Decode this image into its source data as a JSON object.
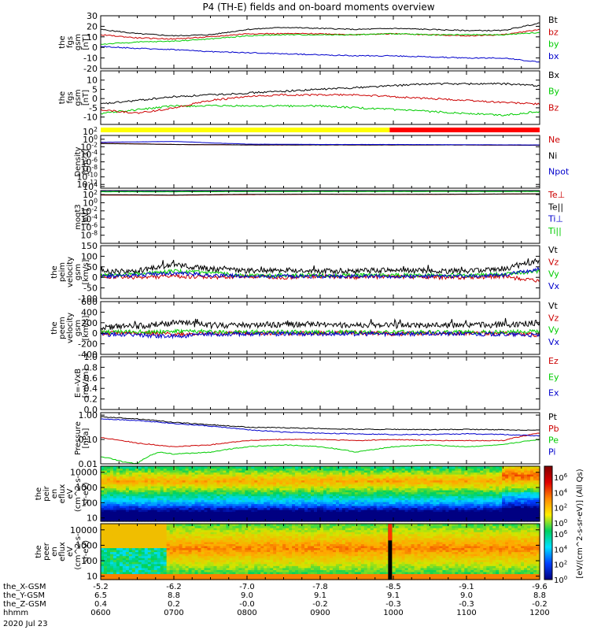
{
  "title": "P4 (TH-E) fields and on-board moments overview",
  "footer": {
    "rows": [
      {
        "label": "the_X-GSM",
        "values": [
          "-5.2",
          "-6.2",
          "-7.0",
          "-7.8",
          "-8.5",
          "-9.1",
          "-9.6"
        ]
      },
      {
        "label": "the_Y-GSM",
        "values": [
          "6.5",
          "8.8",
          "9.0",
          "9.1",
          "9.1",
          "9.0",
          "8.8"
        ]
      },
      {
        "label": "the_Z-GSM",
        "values": [
          "0.4",
          "0.2",
          "-0.0",
          "-0.2",
          "-0.3",
          "-0.3",
          "-0.2"
        ]
      },
      {
        "label": "hhmm",
        "values": [
          "0600",
          "0700",
          "0800",
          "0900",
          "1000",
          "1100",
          "1200"
        ]
      }
    ],
    "date": "2020 Jul 23"
  },
  "colorbar": {
    "label": "[eV/(cm^2-s-sr-eV)] (All Qs)",
    "ticks": [
      "10^6",
      "10^4",
      "10^2",
      "10^0"
    ]
  },
  "flag_bar": {
    "colors": [
      "#ffff00",
      "#ff0000"
    ],
    "split_hour": 9.95
  },
  "chart_data": [
    {
      "id": "fgs",
      "type": "line",
      "ylabel": [
        "the",
        "fgs",
        "gsm",
        "[nT]"
      ],
      "yticks": [
        "30",
        "20",
        "10",
        "0",
        "-10",
        "-20"
      ],
      "ylim": [
        -20,
        30
      ],
      "x_range_hours": [
        6,
        12
      ],
      "series": [
        {
          "name": "Bt",
          "color": "#000000",
          "x": [
            6,
            6.5,
            7,
            7.5,
            8,
            8.5,
            9,
            9.5,
            10,
            10.5,
            11,
            11.5,
            12
          ],
          "y": [
            17,
            13,
            11,
            12,
            17,
            19,
            18,
            17,
            18,
            17,
            16,
            16,
            23
          ]
        },
        {
          "name": "bz",
          "color": "#cc0000",
          "x": [
            6,
            6.5,
            7,
            7.5,
            8,
            8.5,
            9,
            9.5,
            10,
            10.5,
            11,
            11.5,
            12
          ],
          "y": [
            12,
            9,
            8,
            10,
            13,
            13,
            13,
            12,
            13,
            12,
            11,
            12,
            17
          ]
        },
        {
          "name": "by",
          "color": "#00cc00",
          "x": [
            6,
            6.5,
            7,
            7.5,
            8,
            8.5,
            9,
            9.5,
            10,
            10.5,
            11,
            11.5,
            12
          ],
          "y": [
            3,
            5,
            6,
            8,
            11,
            12,
            12,
            12,
            13,
            12,
            12,
            12,
            14
          ]
        },
        {
          "name": "bx",
          "color": "#0000cc",
          "x": [
            6,
            6.5,
            7,
            7.5,
            8,
            8.5,
            9,
            9.5,
            10,
            10.5,
            11,
            11.5,
            12
          ],
          "y": [
            1,
            -1,
            -2,
            -4,
            -5,
            -6,
            -7,
            -8,
            -8,
            -9,
            -10,
            -10,
            -14
          ]
        }
      ]
    },
    {
      "id": "fgs2",
      "type": "line",
      "ylabel": [
        "the",
        "fgs",
        "gsm",
        "[nT]"
      ],
      "yticks": [
        "10",
        "5",
        "0",
        "-5",
        "-10"
      ],
      "ylim": [
        -14,
        15
      ],
      "x_range_hours": [
        6,
        12
      ],
      "series": [
        {
          "name": "Bx",
          "color": "#000000",
          "x": [
            6,
            6.5,
            7,
            7.5,
            8,
            8.5,
            9,
            9.5,
            10,
            10.5,
            11,
            11.5,
            12
          ],
          "y": [
            -3,
            -1,
            1,
            2,
            3,
            4,
            5,
            6,
            7,
            8,
            8,
            8,
            7
          ]
        },
        {
          "name": "By",
          "color": "#00cc00",
          "x": [
            6,
            6.5,
            7,
            7.5,
            8,
            8.5,
            9,
            9.5,
            10,
            10.5,
            11,
            11.5,
            12
          ],
          "y": [
            -8,
            -6,
            -4,
            -4,
            -4,
            -4,
            -4,
            -5,
            -6,
            -7,
            -8,
            -9,
            -7
          ]
        },
        {
          "name": "Bz",
          "color": "#cc0000",
          "x": [
            6,
            6.5,
            7,
            7.5,
            8,
            8.5,
            9,
            9.5,
            10,
            10.5,
            11,
            11.5,
            12
          ],
          "y": [
            -6,
            -8,
            -5,
            -1,
            1,
            2,
            2,
            2,
            1,
            0,
            -1,
            -2,
            -3
          ]
        }
      ]
    },
    {
      "id": "density",
      "type": "line",
      "log": true,
      "ylabel": [
        "Density",
        "[cm-3]"
      ],
      "yticks": [
        "10^2",
        "10^0",
        "10^-2",
        "10^-4",
        "10^-6",
        "10^-8",
        "10^-10",
        "10^-12"
      ],
      "ylim_log10": [
        -12,
        2
      ],
      "x_range_hours": [
        6,
        12
      ],
      "series": [
        {
          "name": "Ne",
          "color": "#cc0000",
          "x": [
            6,
            7,
            8,
            9,
            10,
            11,
            12
          ],
          "y": [
            0.8,
            0.4,
            0.3,
            0.3,
            0.3,
            0.3,
            0.25
          ]
        },
        {
          "name": "Ni",
          "color": "#000000",
          "x": [
            6,
            7,
            8,
            9,
            10,
            11,
            12
          ],
          "y": [
            0.7,
            0.4,
            0.3,
            0.3,
            0.3,
            0.3,
            0.25
          ]
        },
        {
          "name": "Npot",
          "color": "#0000cc",
          "x": [
            6,
            6.5,
            7,
            7.5,
            8,
            9,
            10,
            11,
            12
          ],
          "y": [
            1.5,
            2,
            2.5,
            1,
            0.5,
            0.4,
            0.4,
            0.35,
            0.3
          ]
        }
      ]
    },
    {
      "id": "temperature",
      "type": "line",
      "log": true,
      "ylabel": [
        "moqt3",
        "[eV]"
      ],
      "yticks": [
        "10^4",
        "10^2",
        "10^0",
        "10^-2",
        "10^-4",
        "10^-6",
        "10^-8"
      ],
      "ylim_log10": [
        -9,
        4
      ],
      "x_range_hours": [
        6,
        12
      ],
      "series": [
        {
          "name": "Te⊥",
          "color": "#cc0000",
          "x": [
            6,
            7,
            8,
            9,
            10,
            11,
            12
          ],
          "y": [
            800,
            700,
            1000,
            1200,
            1100,
            1200,
            1500
          ]
        },
        {
          "name": "Te||",
          "color": "#000000",
          "x": [
            6,
            7,
            8,
            9,
            10,
            11,
            12
          ],
          "y": [
            1000,
            800,
            1200,
            1300,
            1200,
            1300,
            1600
          ]
        },
        {
          "name": "Ti⊥",
          "color": "#0000cc",
          "x": [
            6,
            7,
            8,
            9,
            10,
            11,
            12
          ],
          "y": [
            6000,
            6000,
            6500,
            7000,
            7000,
            7000,
            7000
          ]
        },
        {
          "name": "Ti||",
          "color": "#00cc00",
          "x": [
            6,
            7,
            8,
            9,
            10,
            11,
            12
          ],
          "y": [
            5000,
            5000,
            5500,
            6000,
            6000,
            6000,
            6000
          ]
        }
      ]
    },
    {
      "id": "peim",
      "type": "line",
      "ylabel": [
        "the",
        "peim",
        "velocity",
        "gsm",
        "[km/s]"
      ],
      "yticks": [
        "150",
        "100",
        "50",
        "0",
        "-50",
        "-100"
      ],
      "ylim": [
        -100,
        150
      ],
      "x_range_hours": [
        6,
        12
      ],
      "series": [
        {
          "name": "Vt",
          "color": "#000000",
          "x": [
            6,
            6.5,
            7,
            7.5,
            8,
            8.5,
            9,
            9.5,
            10,
            10.5,
            11,
            11.5,
            12
          ],
          "y": [
            25,
            30,
            60,
            40,
            30,
            35,
            30,
            30,
            35,
            30,
            30,
            40,
            80
          ]
        },
        {
          "name": "Vz",
          "color": "#cc0000",
          "x": [
            6,
            6.5,
            7,
            7.5,
            8,
            8.5,
            9,
            9.5,
            10,
            10.5,
            11,
            11.5,
            12
          ],
          "y": [
            5,
            0,
            5,
            0,
            5,
            0,
            5,
            0,
            5,
            0,
            0,
            5,
            -20
          ]
        },
        {
          "name": "Vy",
          "color": "#00cc00",
          "x": [
            6,
            6.5,
            7,
            7.5,
            8,
            8.5,
            9,
            9.5,
            10,
            10.5,
            11,
            11.5,
            12
          ],
          "y": [
            10,
            15,
            30,
            20,
            10,
            10,
            10,
            10,
            10,
            10,
            10,
            15,
            30
          ]
        },
        {
          "name": "Vx",
          "color": "#0000cc",
          "x": [
            6,
            6.5,
            7,
            7.5,
            8,
            8.5,
            9,
            9.5,
            10,
            10.5,
            11,
            11.5,
            12
          ],
          "y": [
            5,
            10,
            20,
            10,
            5,
            5,
            5,
            5,
            5,
            5,
            5,
            10,
            40
          ]
        }
      ]
    },
    {
      "id": "peem",
      "type": "line",
      "ylabel": [
        "the",
        "peem",
        "velocity",
        "gsm",
        "[km/s]"
      ],
      "yticks": [
        "600",
        "400",
        "200",
        "0",
        "-200",
        "-400"
      ],
      "ylim": [
        -400,
        600
      ],
      "x_range_hours": [
        6,
        12
      ],
      "series": [
        {
          "name": "Vt",
          "color": "#000000",
          "x": [
            6,
            6.5,
            7,
            7.5,
            8,
            8.5,
            9,
            9.5,
            10,
            10.5,
            11,
            11.5,
            12
          ],
          "y": [
            120,
            130,
            200,
            150,
            150,
            160,
            170,
            150,
            150,
            150,
            150,
            160,
            200
          ]
        },
        {
          "name": "Vz",
          "color": "#cc0000",
          "x": [
            6,
            6.5,
            7,
            7.5,
            8,
            8.5,
            9,
            9.5,
            10,
            10.5,
            11,
            11.5,
            12
          ],
          "y": [
            0,
            10,
            -20,
            0,
            10,
            0,
            0,
            10,
            -10,
            0,
            0,
            0,
            -30
          ]
        },
        {
          "name": "Vy",
          "color": "#00cc00",
          "x": [
            6,
            6.5,
            7,
            7.5,
            8,
            8.5,
            9,
            9.5,
            10,
            10.5,
            11,
            11.5,
            12
          ],
          "y": [
            20,
            30,
            40,
            30,
            20,
            20,
            20,
            20,
            20,
            20,
            20,
            20,
            40
          ]
        },
        {
          "name": "Vx",
          "color": "#0000cc",
          "x": [
            6,
            6.5,
            7,
            7.5,
            8,
            8.5,
            9,
            9.5,
            10,
            10.5,
            11,
            11.5,
            12
          ],
          "y": [
            -20,
            -30,
            -60,
            -20,
            -10,
            -10,
            -10,
            -10,
            -10,
            -10,
            -10,
            -20,
            -40
          ]
        }
      ]
    },
    {
      "id": "efield",
      "type": "line",
      "ylabel": [
        "E=-VxB",
        "[mV/m]"
      ],
      "yticks": [
        "1.0",
        "0.8",
        "0.6",
        "0.4",
        "0.2",
        "0.0"
      ],
      "ylim": [
        0,
        1
      ],
      "x_range_hours": [
        6,
        12
      ],
      "series": [
        {
          "name": "Ez",
          "color": "#cc0000",
          "x": [],
          "y": []
        },
        {
          "name": "Ey",
          "color": "#00cc00",
          "x": [],
          "y": []
        },
        {
          "name": "Ex",
          "color": "#0000cc",
          "x": [],
          "y": []
        }
      ]
    },
    {
      "id": "pressure",
      "type": "line",
      "log": true,
      "ylabel": [
        "Pressure",
        "[nPa]"
      ],
      "yticks": [
        "1.00",
        "0.10",
        "0.01"
      ],
      "ylim_log10": [
        -2,
        0.1
      ],
      "x_range_hours": [
        6,
        12
      ],
      "series": [
        {
          "name": "Pt",
          "color": "#000000",
          "x": [
            6,
            6.5,
            7,
            7.5,
            8,
            8.5,
            9,
            9.5,
            10,
            10.5,
            11,
            11.5,
            12
          ],
          "y": [
            0.85,
            0.7,
            0.5,
            0.4,
            0.32,
            0.3,
            0.28,
            0.26,
            0.26,
            0.25,
            0.26,
            0.25,
            0.24
          ]
        },
        {
          "name": "Pb",
          "color": "#cc0000",
          "x": [
            6,
            6.5,
            7,
            7.5,
            8,
            8.5,
            9,
            9.5,
            10,
            10.5,
            11,
            11.5,
            12
          ],
          "y": [
            0.12,
            0.07,
            0.05,
            0.06,
            0.09,
            0.1,
            0.1,
            0.09,
            0.1,
            0.09,
            0.09,
            0.09,
            0.18
          ]
        },
        {
          "name": "Pe",
          "color": "#00cc00",
          "x": [
            6,
            6.3,
            6.5,
            6.8,
            7,
            7.5,
            8,
            8.5,
            9,
            9.5,
            10,
            10.5,
            11,
            11.5,
            12
          ],
          "y": [
            0.02,
            0.012,
            0.01,
            0.03,
            0.025,
            0.03,
            0.05,
            0.06,
            0.05,
            0.03,
            0.05,
            0.06,
            0.05,
            0.06,
            0.1
          ]
        },
        {
          "name": "Pi",
          "color": "#0000cc",
          "x": [
            6,
            6.5,
            7,
            7.5,
            8,
            8.5,
            9,
            9.5,
            10,
            10.5,
            11,
            11.5,
            12
          ],
          "y": [
            0.7,
            0.6,
            0.45,
            0.35,
            0.25,
            0.2,
            0.18,
            0.17,
            0.16,
            0.16,
            0.17,
            0.16,
            0.14
          ]
        }
      ]
    },
    {
      "id": "peir",
      "type": "heatmap",
      "ylabel": [
        "the",
        "peir",
        "en",
        "eflux",
        "eV",
        "(cm^2-s-",
        "sr-eV)"
      ],
      "yticks": [
        "10000",
        "1000",
        "100",
        "10"
      ],
      "ylim": [
        6,
        25000
      ],
      "x_range_hours": [
        6,
        12
      ]
    },
    {
      "id": "peer",
      "type": "heatmap",
      "ylabel": [
        "the",
        "peer",
        "en",
        "eflux",
        "eV",
        "(cm^2-s-",
        "sr-eV)"
      ],
      "yticks": [
        "10000",
        "1000",
        "100",
        "10"
      ],
      "ylim": [
        6,
        25000
      ],
      "x_range_hours": [
        6,
        12
      ]
    }
  ]
}
